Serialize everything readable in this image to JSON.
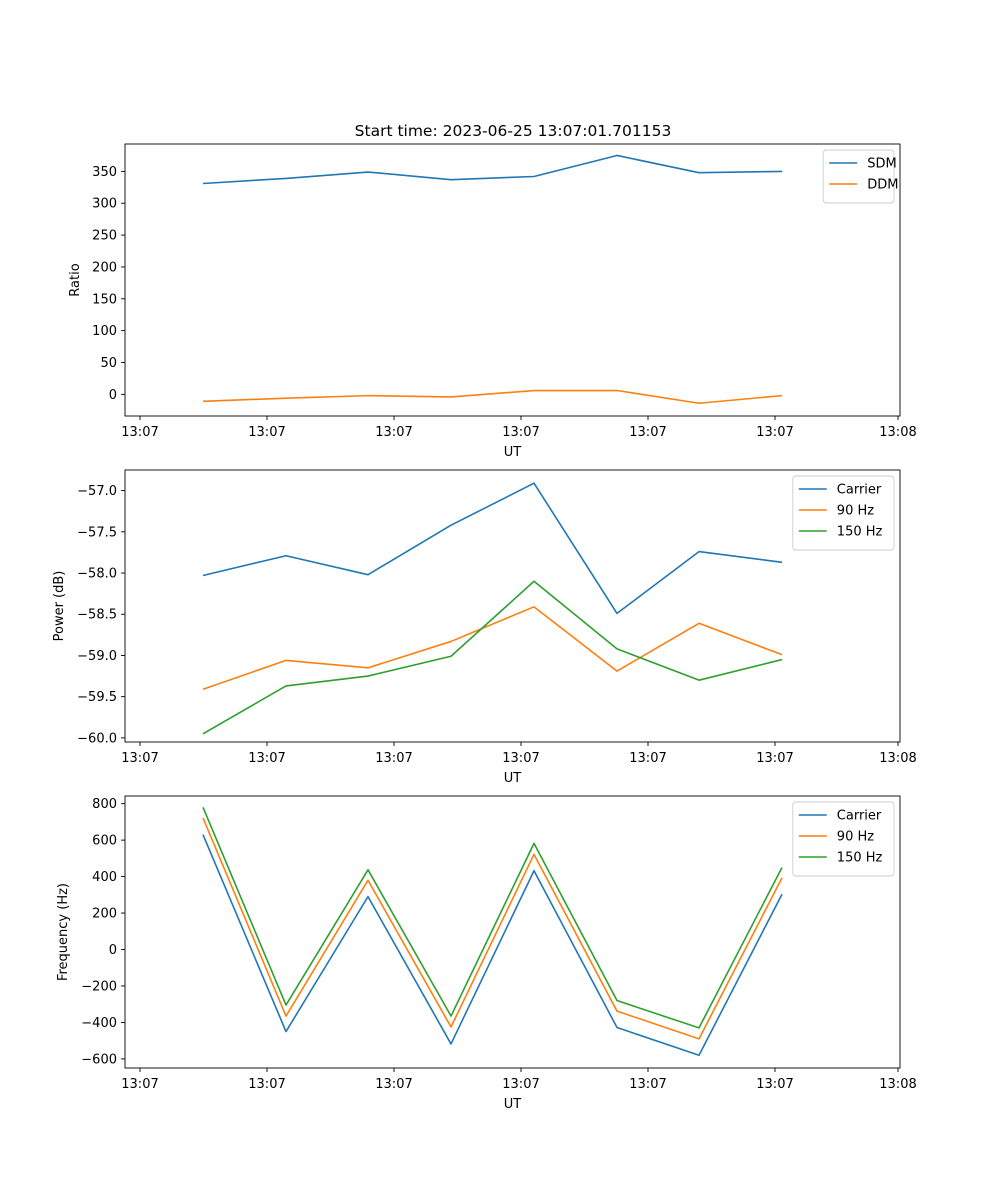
{
  "title": "Start time: 2023-06-25 13:07:01.701153",
  "colors": {
    "blue": "#1f77b4",
    "orange": "#ff7f0e",
    "green": "#2ca02c"
  },
  "chart_data": [
    {
      "type": "line",
      "title": "Start time: 2023-06-25 13:07:01.701153",
      "xlabel": "UT",
      "ylabel": "Ratio",
      "x_tick_labels": [
        "13:07",
        "13:07",
        "13:07",
        "13:07",
        "13:07",
        "13:07",
        "13:08"
      ],
      "y_ticks": [
        0,
        50,
        100,
        150,
        200,
        250,
        300,
        350
      ],
      "y_tick_labels": [
        "0",
        "50",
        "100",
        "150",
        "200",
        "250",
        "300",
        "350"
      ],
      "ylim": [
        -34,
        393
      ],
      "legend_position": "top-right",
      "grid": false,
      "series": [
        {
          "name": "SDM",
          "color": "#1f77b4",
          "values": [
            331,
            339,
            349,
            337,
            342,
            375,
            348,
            350
          ]
        },
        {
          "name": "DDM",
          "color": "#ff7f0e",
          "values": [
            -11,
            -6,
            -2,
            -4,
            6,
            6,
            -14,
            -2
          ]
        }
      ]
    },
    {
      "type": "line",
      "xlabel": "UT",
      "ylabel": "Power (dB)",
      "x_tick_labels": [
        "13:07",
        "13:07",
        "13:07",
        "13:07",
        "13:07",
        "13:07",
        "13:08"
      ],
      "y_ticks": [
        -60.0,
        -59.5,
        -59.0,
        -58.5,
        -58.0,
        -57.5,
        -57.0
      ],
      "y_tick_labels": [
        "−60.0",
        "−59.5",
        "−59.0",
        "−58.5",
        "−58.0",
        "−57.5",
        "−57.0"
      ],
      "ylim": [
        -60.05,
        -56.75
      ],
      "legend_position": "top-right",
      "grid": false,
      "series": [
        {
          "name": "Carrier",
          "color": "#1f77b4",
          "values": [
            -58.03,
            -57.79,
            -58.02,
            -57.42,
            -56.91,
            -58.49,
            -57.74,
            -57.87
          ]
        },
        {
          "name": "90 Hz",
          "color": "#ff7f0e",
          "values": [
            -59.41,
            -59.06,
            -59.15,
            -58.83,
            -58.41,
            -59.19,
            -58.61,
            -58.99
          ]
        },
        {
          "name": "150 Hz",
          "color": "#2ca02c",
          "values": [
            -59.95,
            -59.37,
            -59.25,
            -59.01,
            -58.1,
            -58.92,
            -59.3,
            -59.05
          ]
        }
      ]
    },
    {
      "type": "line",
      "xlabel": "UT",
      "ylabel": "Frequency (Hz)",
      "x_tick_labels": [
        "13:07",
        "13:07",
        "13:07",
        "13:07",
        "13:07",
        "13:07",
        "13:08"
      ],
      "y_ticks": [
        -600,
        -400,
        -200,
        0,
        200,
        400,
        600,
        800
      ],
      "y_tick_labels": [
        "−600",
        "−400",
        "−200",
        "0",
        "200",
        "400",
        "600",
        "800"
      ],
      "ylim": [
        -650,
        842
      ],
      "legend_position": "top-right",
      "grid": false,
      "series": [
        {
          "name": "Carrier",
          "color": "#1f77b4",
          "values": [
            630,
            -450,
            290,
            -518,
            432,
            -428,
            -580,
            303
          ]
        },
        {
          "name": "90 Hz",
          "color": "#ff7f0e",
          "values": [
            722,
            -365,
            380,
            -425,
            522,
            -338,
            -490,
            393
          ]
        },
        {
          "name": "150 Hz",
          "color": "#2ca02c",
          "values": [
            780,
            -305,
            437,
            -365,
            582,
            -280,
            -430,
            450
          ]
        }
      ]
    }
  ]
}
